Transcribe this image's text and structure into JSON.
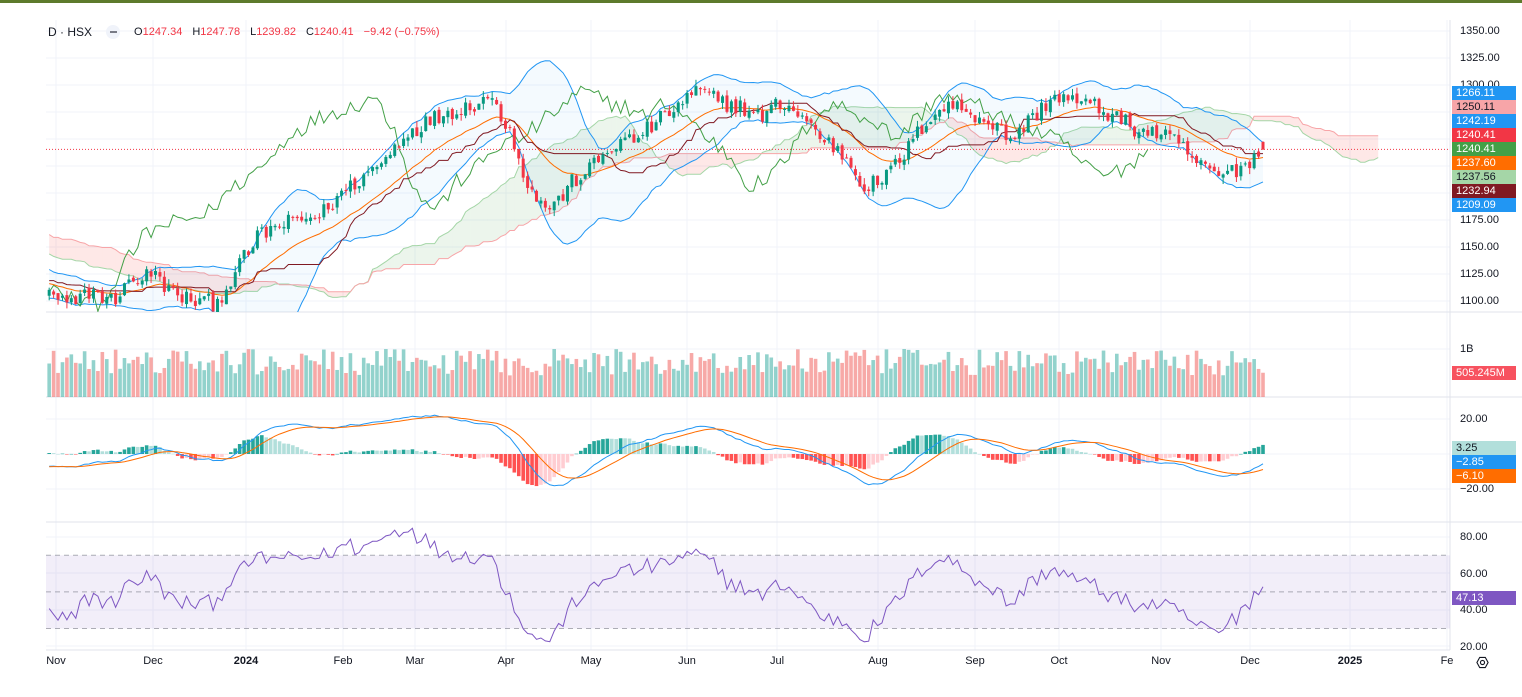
{
  "legend": {
    "symbol": "D · HSX",
    "open_label": "O",
    "open": "1247.34",
    "high_label": "H",
    "high": "1247.78",
    "low_label": "L",
    "low": "1239.82",
    "close_label": "C",
    "close": "1240.41",
    "change": "−9.42 (−0.75%)"
  },
  "price_axis": [
    "1350.00",
    "1325.00",
    "1300.00",
    "1175.00",
    "1150.00",
    "1125.00",
    "1100.00"
  ],
  "price_badges": [
    {
      "text": "1266.11",
      "bg": "#2196f3",
      "fg": "#ffffff"
    },
    {
      "text": "1250.11",
      "bg": "#f7a5a8",
      "fg": "#131722"
    },
    {
      "text": "1242.19",
      "bg": "#2196f3",
      "fg": "#ffffff"
    },
    {
      "text": "1240.41",
      "bg": "#f23645",
      "fg": "#ffffff"
    },
    {
      "text": "1240.41",
      "bg": "#43a047",
      "fg": "#ffffff"
    },
    {
      "text": "1237.60",
      "bg": "#ff6d00",
      "fg": "#ffffff"
    },
    {
      "text": "1237.56",
      "bg": "#a5d6a7",
      "fg": "#131722"
    },
    {
      "text": "1232.94",
      "bg": "#801922",
      "fg": "#ffffff"
    },
    {
      "text": "1209.09",
      "bg": "#2196f3",
      "fg": "#ffffff"
    }
  ],
  "volume_axis": [
    "1B"
  ],
  "volume_badge": {
    "text": "505.245M",
    "bg": "#f7525f"
  },
  "macd_axis": [
    "20.00",
    "−20.00"
  ],
  "macd_badges": [
    {
      "text": "3.25",
      "bg": "#b2dfdb",
      "fg": "#131722"
    },
    {
      "text": "−2.85",
      "bg": "#2196f3",
      "fg": "#ffffff"
    },
    {
      "text": "−6.10",
      "bg": "#ff6d00",
      "fg": "#ffffff"
    }
  ],
  "rsi_axis": [
    "80.00",
    "60.00",
    "40.00",
    "20.00"
  ],
  "rsi_badge": {
    "text": "47.13",
    "bg": "#7e57c2"
  },
  "time_axis": [
    "Nov",
    "Dec",
    "2024",
    "Feb",
    "Mar",
    "Apr",
    "May",
    "Jun",
    "Jul",
    "Aug",
    "Sep",
    "Oct",
    "Nov",
    "Dec",
    "2025",
    "Fe"
  ],
  "colors": {
    "up": "#089981",
    "down": "#f23645",
    "bb": "#2196f3",
    "ema": "#ff6d00",
    "base": "#801922",
    "lagging": "#43a047",
    "rsi": "#7e57c2",
    "topbar": "#5d7a2c"
  },
  "chart_data": {
    "type": "candlestick",
    "interval": "D",
    "exchange": "HSX",
    "bars": 275,
    "weekly_closes": [
      1105,
      1095,
      1110,
      1100,
      1120,
      1125,
      1105,
      1100,
      1098,
      1130,
      1160,
      1170,
      1175,
      1180,
      1200,
      1215,
      1230,
      1255,
      1265,
      1275,
      1280,
      1290,
      1260,
      1200,
      1185,
      1210,
      1225,
      1245,
      1250,
      1265,
      1280,
      1295,
      1285,
      1280,
      1270,
      1285,
      1270,
      1250,
      1235,
      1205,
      1215,
      1240,
      1270,
      1282,
      1275,
      1265,
      1250,
      1270,
      1290,
      1285,
      1280,
      1270,
      1258,
      1255,
      1245,
      1225,
      1215,
      1225,
      1240
    ],
    "last": {
      "open": 1247.34,
      "high": 1247.78,
      "low": 1239.82,
      "close": 1240.41,
      "volume": 505245000
    },
    "indicators": {
      "bollinger": {
        "upper": 1266.11,
        "basis": 1242.19,
        "lower": 1209.09
      },
      "ichimoku": {
        "span_b": 1250.11,
        "span_a": 1237.56,
        "base": 1232.94,
        "lagging": 1240.41
      },
      "ema": 1237.6,
      "macd": {
        "histogram": 3.25,
        "macd": -2.85,
        "signal": -6.1
      },
      "rsi": 47.13
    },
    "price_range": [
      1090,
      1360
    ],
    "macd_range": [
      -25,
      25
    ],
    "rsi_range": [
      15,
      85
    ]
  }
}
